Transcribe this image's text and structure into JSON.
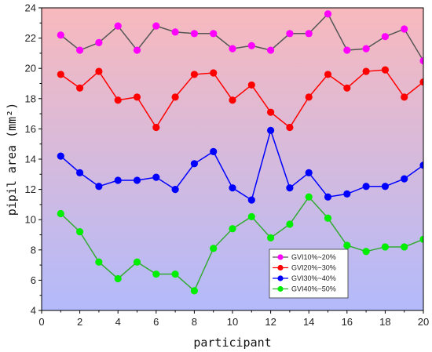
{
  "chart_data": {
    "type": "line",
    "title": "",
    "xlabel": "participant",
    "ylabel": "pipil area (mm²)",
    "xlim": [
      0,
      20
    ],
    "ylim": [
      4,
      24
    ],
    "xticks": [
      0,
      2,
      4,
      6,
      8,
      10,
      12,
      14,
      16,
      18,
      20
    ],
    "yticks": [
      4,
      6,
      8,
      10,
      12,
      14,
      16,
      18,
      20,
      22,
      24
    ],
    "grid": false,
    "legend_position": "bottom-right",
    "background": {
      "top_color": "#f8b9bd",
      "bottom_color": "#b3bafb"
    },
    "x": [
      1,
      2,
      3,
      4,
      5,
      6,
      7,
      8,
      9,
      10,
      11,
      12,
      13,
      14,
      15,
      16,
      17,
      18,
      19,
      20
    ],
    "series": [
      {
        "name": "GVI10%~20%",
        "marker_color": "#ff00ff",
        "line_color": "#555555",
        "values": [
          22.2,
          21.2,
          21.7,
          22.8,
          21.2,
          22.8,
          22.4,
          22.3,
          22.3,
          21.3,
          21.5,
          21.2,
          22.3,
          22.3,
          23.6,
          21.2,
          21.3,
          22.1,
          22.6,
          20.5
        ]
      },
      {
        "name": "GVI20%~30%",
        "marker_color": "#ff0000",
        "line_color": "#ff0000",
        "values": [
          19.6,
          18.7,
          19.8,
          17.9,
          18.1,
          16.1,
          18.1,
          19.6,
          19.7,
          17.9,
          18.9,
          17.1,
          16.1,
          18.1,
          19.6,
          18.7,
          19.8,
          19.9,
          18.1,
          19.1
        ]
      },
      {
        "name": "GVI30%~40%",
        "marker_color": "#0000ff",
        "line_color": "#0000ff",
        "values": [
          14.2,
          13.1,
          12.2,
          12.6,
          12.6,
          12.8,
          12.0,
          13.7,
          14.5,
          12.1,
          11.3,
          15.9,
          12.1,
          13.1,
          11.5,
          11.7,
          12.2,
          12.2,
          12.7,
          13.6
        ]
      },
      {
        "name": "GVI40%~50%",
        "marker_color": "#00ee00",
        "line_color": "#33aa33",
        "values": [
          10.4,
          9.2,
          7.2,
          6.1,
          7.2,
          6.4,
          6.4,
          5.3,
          8.1,
          9.4,
          10.2,
          8.8,
          9.7,
          11.5,
          10.1,
          8.3,
          7.9,
          8.2,
          8.2,
          8.7
        ]
      }
    ]
  }
}
